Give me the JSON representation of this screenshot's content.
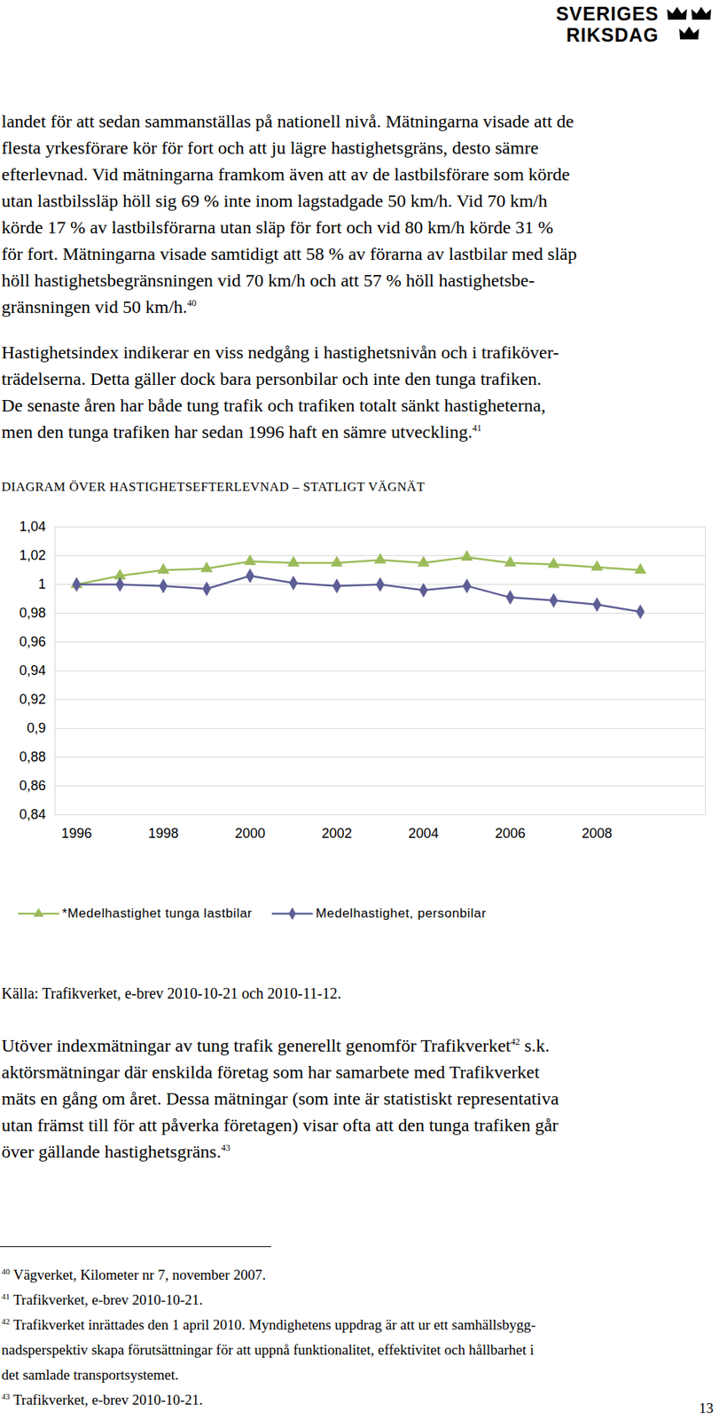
{
  "header": {
    "logo": [
      "SVERIGES",
      "RIKSDAG"
    ]
  },
  "body_before": [
    {
      "lines": [
        [
          "landet för att sedan sammanställas på nationell nivå. Mätningarna visade att de"
        ],
        [
          "flesta yrkesförare kör för fort och att ju lägre hastighetsgräns, desto sämre"
        ],
        [
          "efterlevnad. Vid mätningarna framkom även att av de lastbilsförare som körde"
        ],
        [
          "utan lastbilssläp höll sig 69 % inte inom lagstadgade 50 km/h. Vid 70 km/h"
        ],
        [
          "körde 17 % av lastbilsförarna utan släp för fort och vid 80 km/h körde 31 %"
        ],
        [
          "för fort. Mätningarna visade samtidigt att 58 % av förarna av lastbilar med släp"
        ],
        [
          "höll hastighetsbegränsningen vid 70 km/h och att 57 % höll hastighetsbe-"
        ],
        [
          "gränsningen vid 50 km/h.",
          {
            "sup": 40
          }
        ]
      ]
    },
    {
      "lines": [
        [
          "Hastighetsindex indikerar en viss nedgång i hastighetsnivån och i trafiköver-"
        ],
        [
          "trädelserna. Detta gäller dock bara personbilar och inte den tunga trafiken."
        ],
        [
          "De senaste åren har både tung trafik och trafiken totalt sänkt hastigheterna,"
        ],
        [
          "men den tunga trafiken har sedan 1996 haft en sämre utveckling.",
          {
            "sup": 41
          }
        ]
      ]
    }
  ],
  "chart_data": {
    "type": "line",
    "title": "DIAGRAM ÖVER HASTIGHETSEFTERLEVNAD – STATLIGT VÄGNÄT",
    "x": [
      1996,
      1997,
      1998,
      1999,
      2000,
      2001,
      2002,
      2003,
      2004,
      2005,
      2006,
      2007,
      2008,
      2009
    ],
    "xlim": [
      1995.5,
      2010.5
    ],
    "xticks": [
      1996,
      1998,
      2000,
      2002,
      2004,
      2006,
      2008
    ],
    "ylim": [
      0.84,
      1.04
    ],
    "yticks": [
      {
        "value": 0.84,
        "label": "0,84"
      },
      {
        "value": 0.86,
        "label": "0,86"
      },
      {
        "value": 0.88,
        "label": "0,88"
      },
      {
        "value": 0.9,
        "label": "0,9"
      },
      {
        "value": 0.92,
        "label": "0,92"
      },
      {
        "value": 0.94,
        "label": "0,94"
      },
      {
        "value": 0.96,
        "label": "0,96"
      },
      {
        "value": 0.98,
        "label": "0,98"
      },
      1,
      {
        "value": 1.02,
        "label": "1,02"
      },
      {
        "value": 1.04,
        "label": "1,04"
      }
    ],
    "grid": true,
    "legend": "bottom",
    "series": [
      {
        "name": "*Medelhastighet tunga lastbilar",
        "color": "#9bbb59",
        "marker": "triangle",
        "values": [
          1.0,
          1.006,
          1.01,
          1.011,
          1.016,
          1.015,
          1.015,
          1.017,
          1.015,
          1.019,
          1.015,
          1.014,
          1.012,
          1.01
        ]
      },
      {
        "name": "Medelhastighet, personbilar",
        "color": "#5e5e96",
        "marker": "diamond",
        "values": [
          1.0,
          1.0,
          0.999,
          0.997,
          1.006,
          1.001,
          0.999,
          1.0,
          0.996,
          0.999,
          0.991,
          0.989,
          0.986,
          0.981
        ]
      }
    ]
  },
  "source": "Källa: Trafikverket, e-brev 2010-10-21 och 2010-11-12.",
  "body_after": [
    {
      "lines": [
        [
          "Utöver indexmätningar av tung trafik generellt genomför Trafikverket",
          {
            "sup": 42
          },
          " s.k."
        ],
        [
          "aktörsmätningar där enskilda företag som har samarbete med Trafikverket"
        ],
        [
          "mäts en gång om året. Dessa mätningar (som inte är statistiskt representativa"
        ],
        [
          "utan främst till för att påverka företagen) visar ofta att den tunga trafiken går"
        ],
        [
          "över gällande hastighetsgräns.",
          {
            "sup": 43
          }
        ]
      ]
    }
  ],
  "footnotes": [
    {
      "number": 40,
      "lines": [
        "Vägverket, Kilometer nr 7, november 2007."
      ]
    },
    {
      "number": 41,
      "lines": [
        "Trafikverket, e-brev 2010-10-21."
      ]
    },
    {
      "number": 42,
      "lines": [
        "Trafikverket inrättades den 1 april 2010. Myndighetens uppdrag är att ur ett samhällsbygg-",
        "nadsperspektiv skapa förutsättningar för att uppnå funktionalitet, effektivitet och hållbarhet i",
        "det samlade transportsystemet."
      ]
    },
    {
      "number": 43,
      "lines": [
        "Trafikverket, e-brev 2010-10-21."
      ]
    }
  ],
  "page_number": 13
}
